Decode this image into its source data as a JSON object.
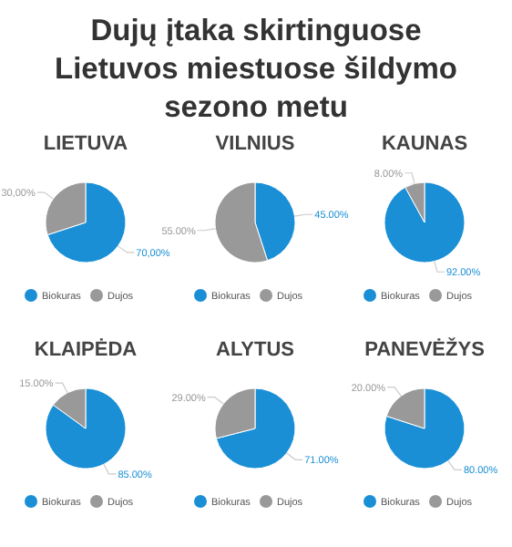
{
  "chart_data": [
    {
      "type": "other",
      "title": "Dujų įtaka skirtinguose Lietuvos miestuose šildymo sezono metu"
    },
    {
      "type": "pie",
      "title": "LIETUVA",
      "categories": [
        "Biokuras",
        "Dujos"
      ],
      "values": [
        70,
        30
      ],
      "value_labels": [
        "70,00%",
        "30,00%"
      ],
      "colors": [
        "#1a8fd6",
        "#999999"
      ],
      "legend": "bottom"
    },
    {
      "type": "pie",
      "title": "VILNIUS",
      "categories": [
        "Biokuras",
        "Dujos"
      ],
      "values": [
        45,
        55
      ],
      "value_labels": [
        "45.00%",
        "55.00%"
      ],
      "colors": [
        "#1a8fd6",
        "#999999"
      ],
      "legend": "bottom"
    },
    {
      "type": "pie",
      "title": "KAUNAS",
      "categories": [
        "Biokuras",
        "Dujos"
      ],
      "values": [
        92,
        8
      ],
      "value_labels": [
        "92.00%",
        "8.00%"
      ],
      "colors": [
        "#1a8fd6",
        "#999999"
      ],
      "legend": "bottom"
    },
    {
      "type": "pie",
      "title": "KLAIPĖDA",
      "categories": [
        "Biokuras",
        "Dujos"
      ],
      "values": [
        85,
        15
      ],
      "value_labels": [
        "85.00%",
        "15.00%"
      ],
      "colors": [
        "#1a8fd6",
        "#999999"
      ],
      "legend": "bottom"
    },
    {
      "type": "pie",
      "title": "ALYTUS",
      "categories": [
        "Biokuras",
        "Dujos"
      ],
      "values": [
        71,
        29
      ],
      "value_labels": [
        "71.00%",
        "29.00%"
      ],
      "colors": [
        "#1a8fd6",
        "#999999"
      ],
      "legend": "bottom"
    },
    {
      "type": "pie",
      "title": "PANEVĖŽYS",
      "categories": [
        "Biokuras",
        "Dujos"
      ],
      "values": [
        80,
        20
      ],
      "value_labels": [
        "80.00%",
        "20.00%"
      ],
      "colors": [
        "#1a8fd6",
        "#999999"
      ],
      "legend": "bottom"
    }
  ]
}
